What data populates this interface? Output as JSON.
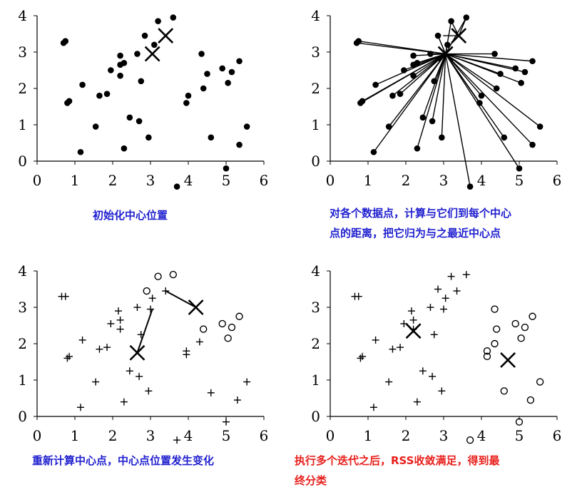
{
  "panels": [
    {
      "id": "initial",
      "caption": "初始化中心位置",
      "x_ticks": [
        "0",
        "1",
        "2",
        "3",
        "4",
        "5",
        "6"
      ],
      "y_ticks": [
        "0",
        "1",
        "2",
        "3",
        "4"
      ],
      "points": [
        [
          0.7,
          3.25
        ],
        [
          0.75,
          3.3
        ],
        [
          0.8,
          1.6
        ],
        [
          0.85,
          1.65
        ],
        [
          1.15,
          0.25
        ],
        [
          1.2,
          2.1
        ],
        [
          1.55,
          0.95
        ],
        [
          1.65,
          1.8
        ],
        [
          1.85,
          1.85
        ],
        [
          1.95,
          2.5
        ],
        [
          2.2,
          2.35
        ],
        [
          2.2,
          2.65
        ],
        [
          2.2,
          2.9
        ],
        [
          2.3,
          2.7
        ],
        [
          2.3,
          0.35
        ],
        [
          2.45,
          1.2
        ],
        [
          2.65,
          2.95
        ],
        [
          2.7,
          1.1
        ],
        [
          2.75,
          2.2
        ],
        [
          2.85,
          3.45
        ],
        [
          2.95,
          0.65
        ],
        [
          3.1,
          3.2
        ],
        [
          3.2,
          3.85
        ],
        [
          3.6,
          3.95
        ],
        [
          3.95,
          1.6
        ],
        [
          4.0,
          1.8
        ],
        [
          4.35,
          2.95
        ],
        [
          4.4,
          2.0
        ],
        [
          4.5,
          2.4
        ],
        [
          4.6,
          0.65
        ],
        [
          4.9,
          2.55
        ],
        [
          5.05,
          2.15
        ],
        [
          5.15,
          2.45
        ],
        [
          5.35,
          0.45
        ],
        [
          5.35,
          2.75
        ],
        [
          5.55,
          0.95
        ],
        [
          5.0,
          -0.2
        ],
        [
          3.7,
          -0.7
        ]
      ],
      "centers": [
        [
          3.4,
          3.45
        ],
        [
          3.05,
          2.95
        ]
      ]
    },
    {
      "id": "assign",
      "caption": "对各个数据点，计算与它们到每个中心\n点的距离，把它归为与之最近中心点",
      "x_ticks": [
        "0",
        "1",
        "2",
        "3",
        "4",
        "5",
        "6"
      ],
      "y_ticks": [
        "0",
        "1",
        "2",
        "3",
        "4"
      ],
      "points": [
        [
          0.7,
          3.25
        ],
        [
          0.75,
          3.3
        ],
        [
          0.8,
          1.6
        ],
        [
          0.85,
          1.65
        ],
        [
          1.15,
          0.25
        ],
        [
          1.2,
          2.1
        ],
        [
          1.55,
          0.95
        ],
        [
          1.65,
          1.8
        ],
        [
          1.85,
          1.85
        ],
        [
          1.95,
          2.5
        ],
        [
          2.2,
          2.35
        ],
        [
          2.2,
          2.65
        ],
        [
          2.2,
          2.9
        ],
        [
          2.3,
          2.7
        ],
        [
          2.3,
          0.35
        ],
        [
          2.45,
          1.2
        ],
        [
          2.65,
          2.95
        ],
        [
          2.7,
          1.1
        ],
        [
          2.75,
          2.2
        ],
        [
          2.85,
          3.45
        ],
        [
          2.95,
          0.65
        ],
        [
          3.1,
          3.2
        ],
        [
          3.2,
          3.85
        ],
        [
          3.6,
          3.95
        ],
        [
          3.95,
          1.6
        ],
        [
          4.0,
          1.8
        ],
        [
          4.35,
          2.95
        ],
        [
          4.4,
          2.0
        ],
        [
          4.5,
          2.4
        ],
        [
          4.6,
          0.65
        ],
        [
          4.9,
          2.55
        ],
        [
          5.05,
          2.15
        ],
        [
          5.15,
          2.45
        ],
        [
          5.35,
          0.45
        ],
        [
          5.35,
          2.75
        ],
        [
          5.55,
          0.95
        ],
        [
          5.0,
          -0.2
        ],
        [
          3.7,
          -0.7
        ]
      ],
      "centers": [
        [
          3.4,
          3.45
        ],
        [
          3.05,
          2.95
        ]
      ]
    },
    {
      "id": "recompute",
      "caption": "重新计算中心点，中心点位置发生变化",
      "x_ticks": [
        "0",
        "1",
        "2",
        "3",
        "4",
        "5",
        "6"
      ],
      "y_ticks": [
        "0",
        "1",
        "2",
        "3",
        "4"
      ],
      "plus_points": [
        [
          0.65,
          3.3
        ],
        [
          0.75,
          3.3
        ],
        [
          0.8,
          1.6
        ],
        [
          0.85,
          1.65
        ],
        [
          1.15,
          0.25
        ],
        [
          1.2,
          2.1
        ],
        [
          1.55,
          0.95
        ],
        [
          1.65,
          1.85
        ],
        [
          1.85,
          1.9
        ],
        [
          1.95,
          2.55
        ],
        [
          2.15,
          2.9
        ],
        [
          2.2,
          2.4
        ],
        [
          2.2,
          2.65
        ],
        [
          2.3,
          0.4
        ],
        [
          2.45,
          1.25
        ],
        [
          2.65,
          3.0
        ],
        [
          2.7,
          1.1
        ],
        [
          2.75,
          2.25
        ],
        [
          2.95,
          0.7
        ],
        [
          3.0,
          2.95
        ],
        [
          3.05,
          3.25
        ],
        [
          3.4,
          3.45
        ],
        [
          3.95,
          1.7
        ],
        [
          3.95,
          1.8
        ],
        [
          4.3,
          2.05
        ],
        [
          4.6,
          0.65
        ],
        [
          5.0,
          -0.15
        ],
        [
          5.3,
          0.45
        ],
        [
          5.55,
          0.95
        ],
        [
          3.7,
          -0.65
        ]
      ],
      "circle_points": [
        [
          2.9,
          3.45
        ],
        [
          3.2,
          3.85
        ],
        [
          3.6,
          3.9
        ],
        [
          4.4,
          2.4
        ],
        [
          4.9,
          2.55
        ],
        [
          5.05,
          2.15
        ],
        [
          5.15,
          2.45
        ],
        [
          5.35,
          2.75
        ]
      ],
      "centers": [
        [
          2.65,
          1.75
        ],
        [
          4.2,
          3.0
        ]
      ],
      "moves": [
        [
          [
            3.05,
            2.95
          ],
          [
            2.65,
            1.75
          ]
        ],
        [
          [
            3.4,
            3.45
          ],
          [
            4.2,
            3.0
          ]
        ]
      ]
    },
    {
      "id": "converged",
      "caption": "执行多个迭代之后，RSS收敛满足，得到最\n终分类",
      "x_ticks": [
        "0",
        "1",
        "2",
        "3",
        "4",
        "5",
        "6"
      ],
      "y_ticks": [
        "0",
        "1",
        "2",
        "3",
        "4"
      ],
      "plus_points": [
        [
          0.65,
          3.3
        ],
        [
          0.75,
          3.3
        ],
        [
          0.8,
          1.6
        ],
        [
          0.85,
          1.65
        ],
        [
          1.15,
          0.25
        ],
        [
          1.2,
          2.1
        ],
        [
          1.55,
          0.95
        ],
        [
          1.65,
          1.85
        ],
        [
          1.85,
          1.9
        ],
        [
          1.95,
          2.55
        ],
        [
          2.15,
          2.9
        ],
        [
          2.2,
          2.4
        ],
        [
          2.2,
          2.65
        ],
        [
          2.3,
          0.4
        ],
        [
          2.45,
          1.25
        ],
        [
          2.65,
          3.0
        ],
        [
          2.7,
          1.1
        ],
        [
          2.75,
          2.25
        ],
        [
          2.95,
          0.7
        ],
        [
          3.0,
          2.95
        ],
        [
          3.05,
          3.25
        ],
        [
          3.2,
          3.85
        ],
        [
          3.6,
          3.9
        ],
        [
          2.85,
          3.5
        ],
        [
          3.35,
          3.45
        ]
      ],
      "circle_points": [
        [
          4.35,
          2.95
        ],
        [
          4.4,
          2.4
        ],
        [
          4.35,
          2.0
        ],
        [
          4.9,
          2.55
        ],
        [
          5.05,
          2.15
        ],
        [
          5.15,
          2.45
        ],
        [
          5.35,
          2.75
        ],
        [
          4.15,
          1.65
        ],
        [
          4.15,
          1.8
        ],
        [
          4.6,
          0.7
        ],
        [
          5.3,
          0.45
        ],
        [
          5.55,
          0.95
        ],
        [
          5.0,
          -0.15
        ],
        [
          3.7,
          -0.65
        ]
      ],
      "centers": [
        [
          2.2,
          2.35
        ],
        [
          4.7,
          1.55
        ]
      ]
    }
  ],
  "colors": {
    "ink": "#000000",
    "caption_blue": "#1f1fcf",
    "caption_red": "#e8201c"
  }
}
